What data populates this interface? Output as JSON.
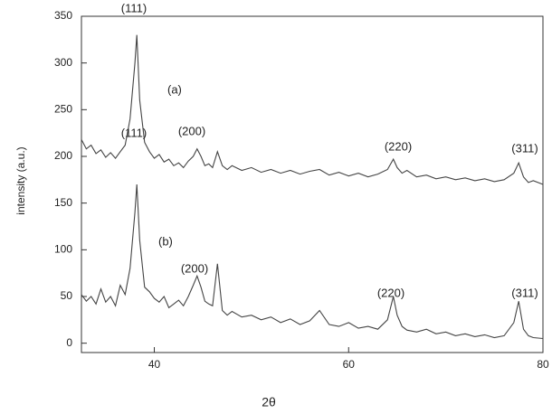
{
  "chart_data": {
    "type": "line",
    "xlabel": "2θ",
    "ylabel": "intensity (a.u.)",
    "xlim": [
      32.5,
      80
    ],
    "ylim": [
      -10,
      350
    ],
    "xticks": [
      40,
      60,
      80
    ],
    "yticks": [
      0,
      50,
      100,
      150,
      200,
      250,
      300,
      350
    ],
    "x": [
      32.5,
      33,
      33.5,
      34,
      34.5,
      35,
      35.5,
      36,
      36.5,
      37,
      37.5,
      38,
      38.2,
      38.5,
      39,
      39.5,
      40,
      40.5,
      41,
      41.5,
      42,
      42.5,
      43,
      43.5,
      44,
      44.4,
      44.8,
      45.2,
      45.6,
      46,
      46.5,
      47,
      47.5,
      48,
      49,
      50,
      51,
      52,
      53,
      54,
      55,
      56,
      57,
      58,
      59,
      60,
      61,
      62,
      63,
      64,
      64.6,
      65,
      65.5,
      66,
      67,
      68,
      69,
      70,
      71,
      72,
      73,
      74,
      75,
      76,
      77,
      77.5,
      78,
      78.5,
      79,
      80
    ],
    "series": [
      {
        "name": "(a)",
        "color": "#444444",
        "values": [
          218,
          208,
          212,
          203,
          207,
          199,
          204,
          198,
          205,
          212,
          240,
          300,
          330,
          260,
          215,
          205,
          198,
          202,
          194,
          197,
          190,
          193,
          188,
          195,
          200,
          208,
          200,
          190,
          192,
          188,
          205,
          190,
          186,
          190,
          185,
          188,
          183,
          186,
          182,
          185,
          181,
          184,
          186,
          180,
          183,
          179,
          182,
          178,
          181,
          186,
          197,
          188,
          182,
          185,
          178,
          180,
          176,
          178,
          175,
          177,
          174,
          176,
          173,
          175,
          182,
          193,
          178,
          172,
          174,
          170
        ]
      },
      {
        "name": "(b)",
        "color": "#444444",
        "values": [
          52,
          45,
          50,
          42,
          58,
          44,
          50,
          40,
          62,
          52,
          80,
          140,
          170,
          110,
          60,
          55,
          48,
          44,
          50,
          38,
          42,
          46,
          40,
          50,
          62,
          72,
          60,
          45,
          42,
          40,
          85,
          35,
          30,
          34,
          28,
          30,
          25,
          28,
          22,
          26,
          20,
          24,
          35,
          20,
          18,
          22,
          16,
          18,
          15,
          25,
          50,
          30,
          18,
          14,
          12,
          15,
          10,
          12,
          8,
          10,
          7,
          9,
          6,
          8,
          22,
          45,
          15,
          8,
          6,
          5
        ]
      }
    ],
    "annotations": [
      "(111)",
      "(200)",
      "(220)",
      "(311)",
      "(111)",
      "(200)",
      "(220)",
      "(311)"
    ]
  }
}
